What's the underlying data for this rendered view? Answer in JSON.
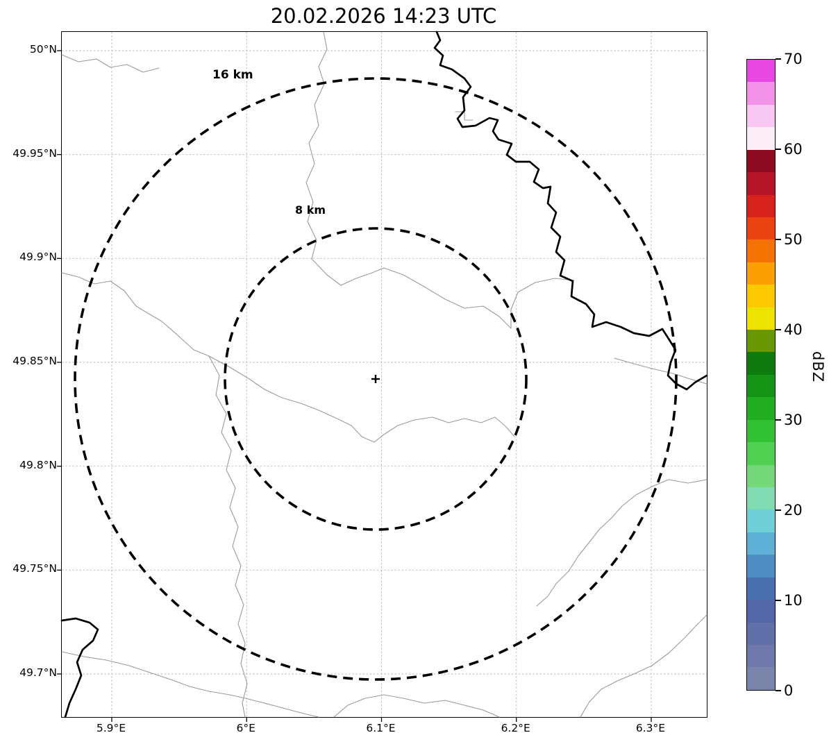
{
  "title": "20.02.2026 14:23 UTC",
  "map": {
    "range_rings": [
      {
        "label": "16 km",
        "radius_km": 16
      },
      {
        "label": "8 km",
        "radius_km": 8
      }
    ],
    "center_marker": "+"
  },
  "axes": {
    "x_ticks": [
      "5.9°E",
      "6°E",
      "6.1°E",
      "6.2°E",
      "6.3°E"
    ],
    "y_ticks": [
      "50°N",
      "49.95°N",
      "49.9°N",
      "49.85°N",
      "49.8°N",
      "49.75°N",
      "49.7°N"
    ]
  },
  "colorbar": {
    "label": "dBZ",
    "min": 0,
    "max": 70,
    "tick_values": [
      0,
      10,
      20,
      30,
      40,
      50,
      60,
      70
    ],
    "colors_bottom_to_top": [
      "#7b84ab",
      "#6e79a9",
      "#6070a8",
      "#5367a6",
      "#4a6fb1",
      "#4f8ec5",
      "#5fb0d6",
      "#6fd0d8",
      "#7fdcb2",
      "#72d878",
      "#50cf50",
      "#32c132",
      "#20ad20",
      "#169416",
      "#0d7c0d",
      "#699700",
      "#ece400",
      "#fcc800",
      "#fb9f02",
      "#f57100",
      "#ec4312",
      "#d8231d",
      "#b51526",
      "#8c0b20",
      "#fbeef9",
      "#f8c8f3",
      "#f392e9",
      "#e746e0"
    ]
  },
  "chart_data": {
    "type": "heatmap",
    "title": "20.02.2026 14:23 UTC",
    "xlabel": "",
    "ylabel": "",
    "x_tick_labels": [
      "5.9°E",
      "6°E",
      "6.1°E",
      "6.2°E",
      "6.3°E"
    ],
    "y_tick_labels": [
      "50°N",
      "49.95°N",
      "49.9°N",
      "49.85°N",
      "49.8°N",
      "49.75°N",
      "49.7°N"
    ],
    "x_range_deg_e": [
      5.863,
      6.341
    ],
    "y_range_deg_n": [
      49.679,
      50.009
    ],
    "grid": true,
    "legend_position": "none",
    "colorbar_label": "dBZ",
    "colorbar_range": [
      0,
      70
    ],
    "colorbar_tick_values": [
      0,
      10,
      20,
      30,
      40,
      50,
      60,
      70
    ],
    "range_rings_km": [
      8,
      16
    ],
    "radar_site": {
      "lon_deg_e": 6.096,
      "lat_deg_n": 49.842
    },
    "values_note": "No radar reflectivity echoes are visible; the field is empty. Only basemap border/river lines, the radar site cross and the 8 km / 16 km dashed range rings are drawn."
  }
}
